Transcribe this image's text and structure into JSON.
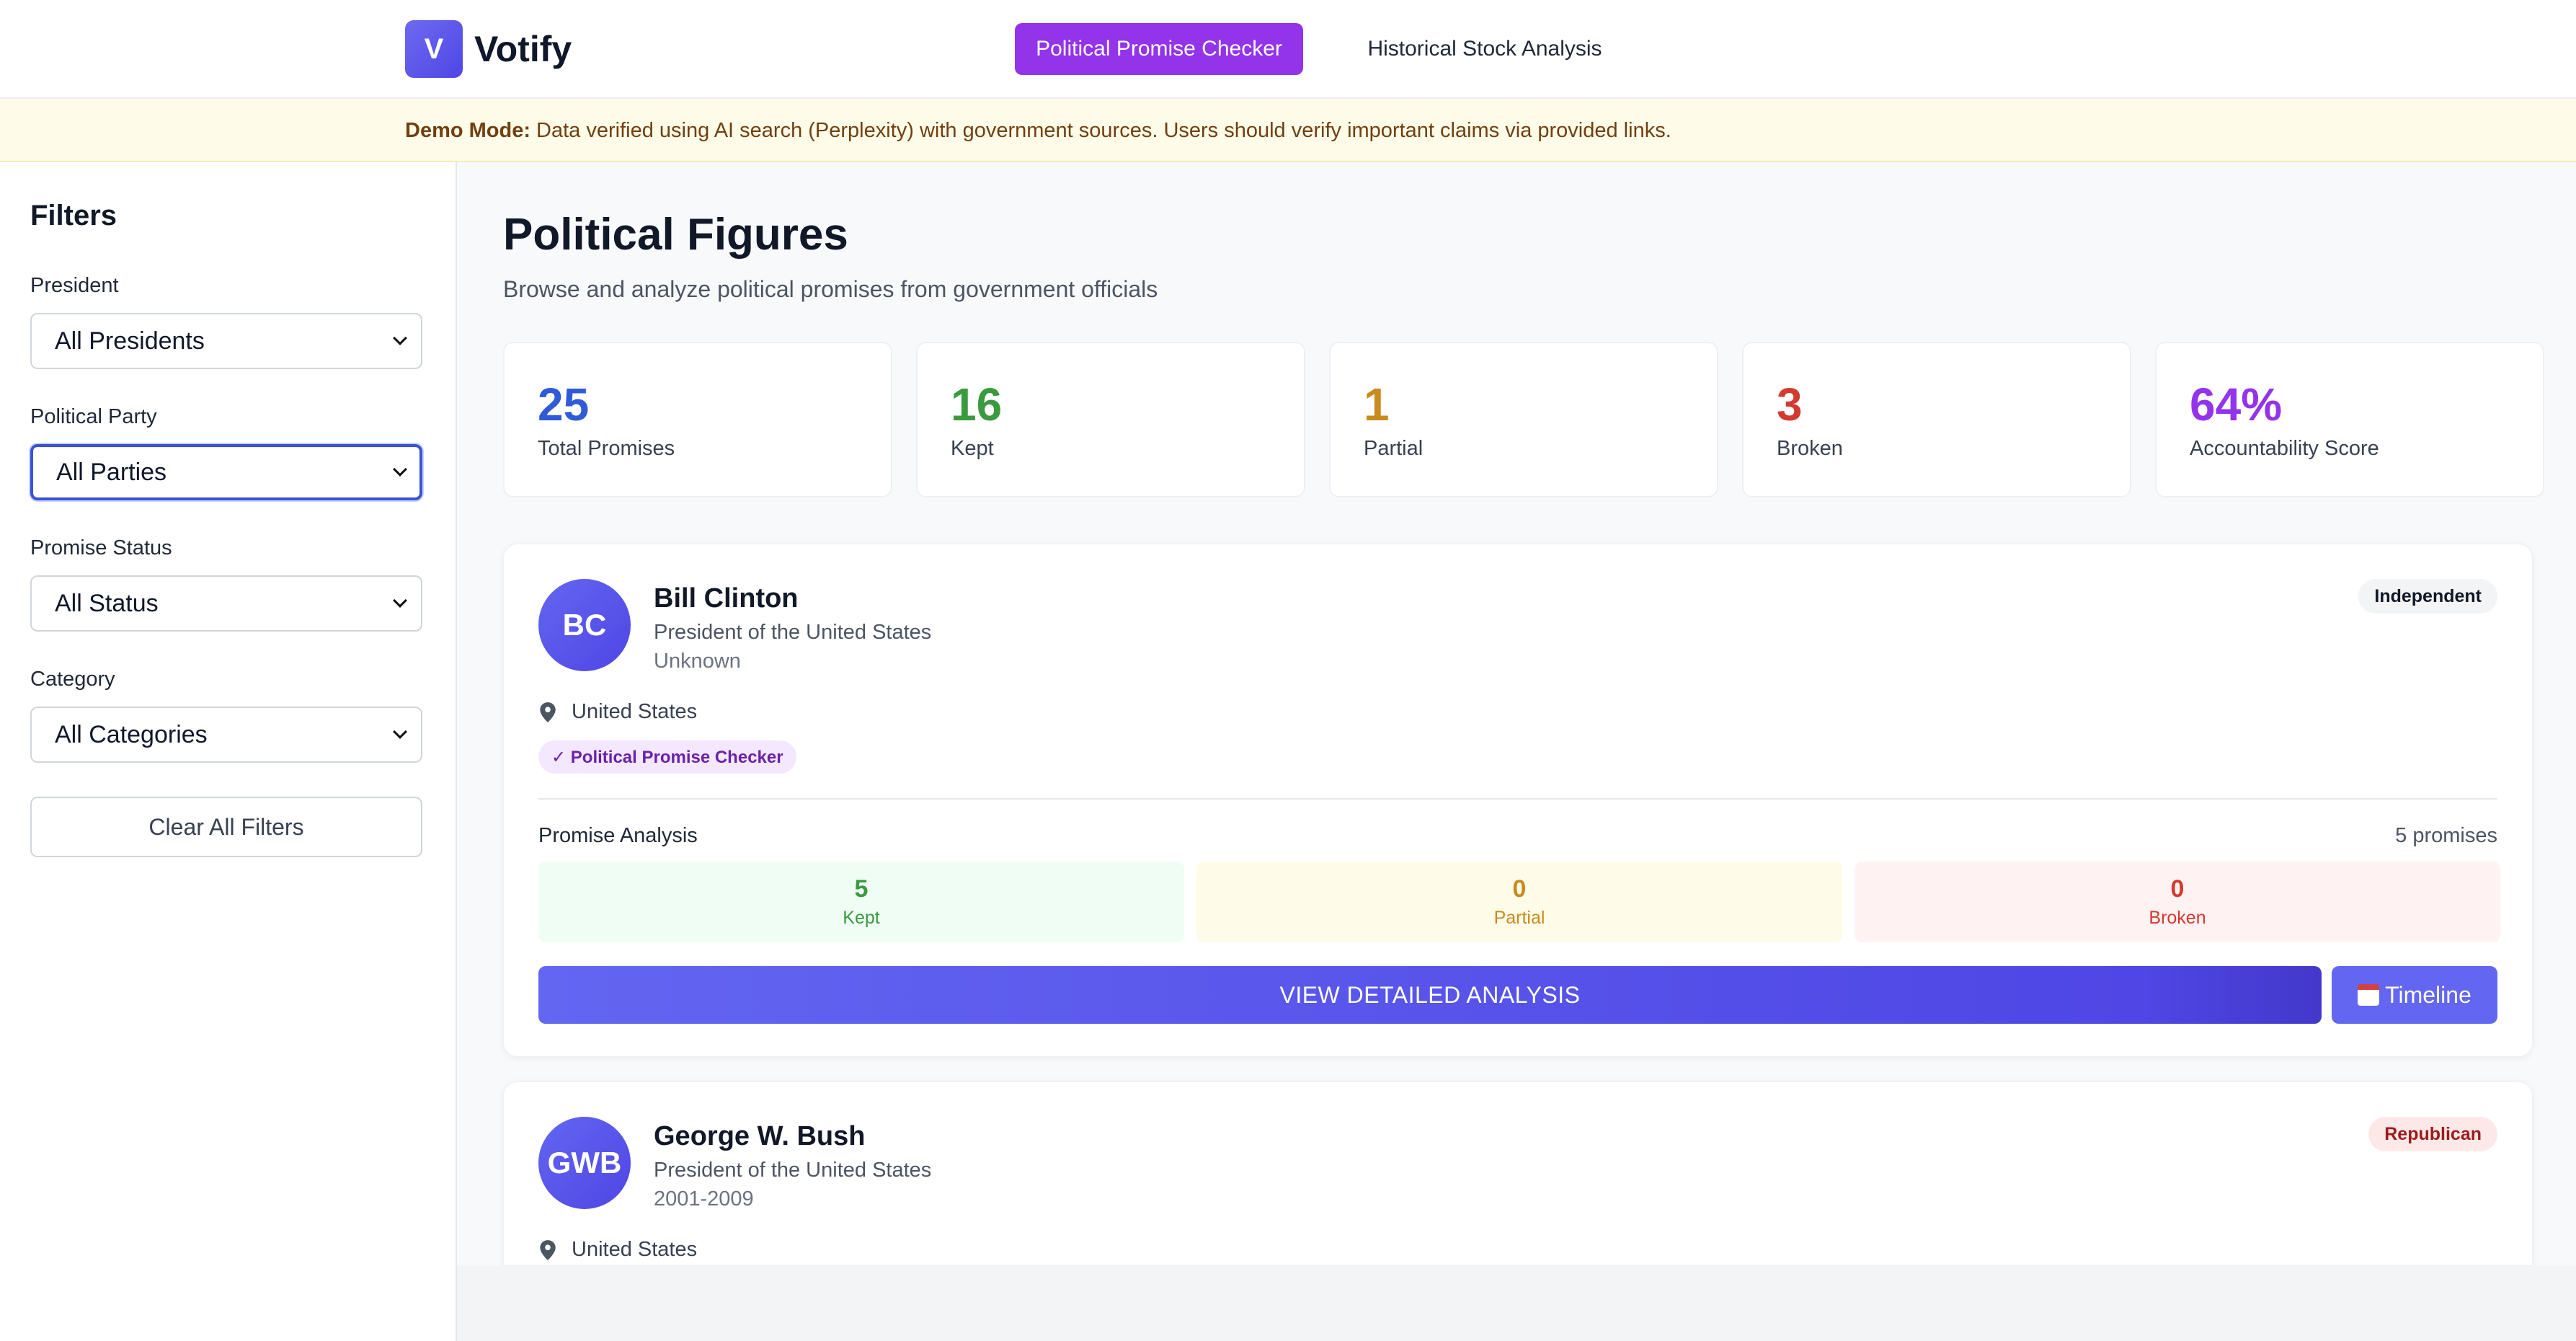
{
  "header": {
    "logo_letter": "V",
    "app_name": "Votify",
    "nav": [
      {
        "label": "Political Promise Checker",
        "active": true
      },
      {
        "label": "Historical Stock Analysis",
        "active": false
      }
    ]
  },
  "banner": {
    "bold": "Demo Mode:",
    "text": " Data verified using AI search (Perplexity) with government sources. Users should verify important claims via provided links."
  },
  "filters": {
    "title": "Filters",
    "president": {
      "label": "President",
      "value": "All Presidents"
    },
    "party": {
      "label": "Political Party",
      "value": "All Parties"
    },
    "status": {
      "label": "Promise Status",
      "value": "All Status"
    },
    "category": {
      "label": "Category",
      "value": "All Categories"
    },
    "clear_label": "Clear All Filters"
  },
  "main": {
    "title": "Political Figures",
    "subtitle": "Browse and analyze political promises from government officials"
  },
  "stats": [
    {
      "value": "25",
      "label": "Total Promises",
      "color": "#2f5bd9"
    },
    {
      "value": "16",
      "label": "Kept",
      "color": "#3a9a3f"
    },
    {
      "value": "1",
      "label": "Partial",
      "color": "#c98a1f"
    },
    {
      "value": "3",
      "label": "Broken",
      "color": "#d33a2f"
    },
    {
      "value": "64%",
      "label": "Accountability Score",
      "color": "#9333ea"
    }
  ],
  "figures": [
    {
      "initials": "BC",
      "name": "Bill Clinton",
      "role": "President of the United States",
      "term": "Unknown",
      "party": "Independent",
      "location": "United States",
      "tag": "✓ Political Promise Checker",
      "analysis_title": "Promise Analysis",
      "promise_count": "5 promises",
      "kept": {
        "value": "5",
        "label": "Kept"
      },
      "partial": {
        "value": "0",
        "label": "Partial"
      },
      "broken": {
        "value": "0",
        "label": "Broken"
      },
      "detail_label": "VIEW DETAILED ANALYSIS",
      "timeline_label": "Timeline"
    },
    {
      "initials": "GWB",
      "name": "George W. Bush",
      "role": "President of the United States",
      "term": "2001-2009",
      "party": "Republican",
      "location": "United States"
    }
  ]
}
